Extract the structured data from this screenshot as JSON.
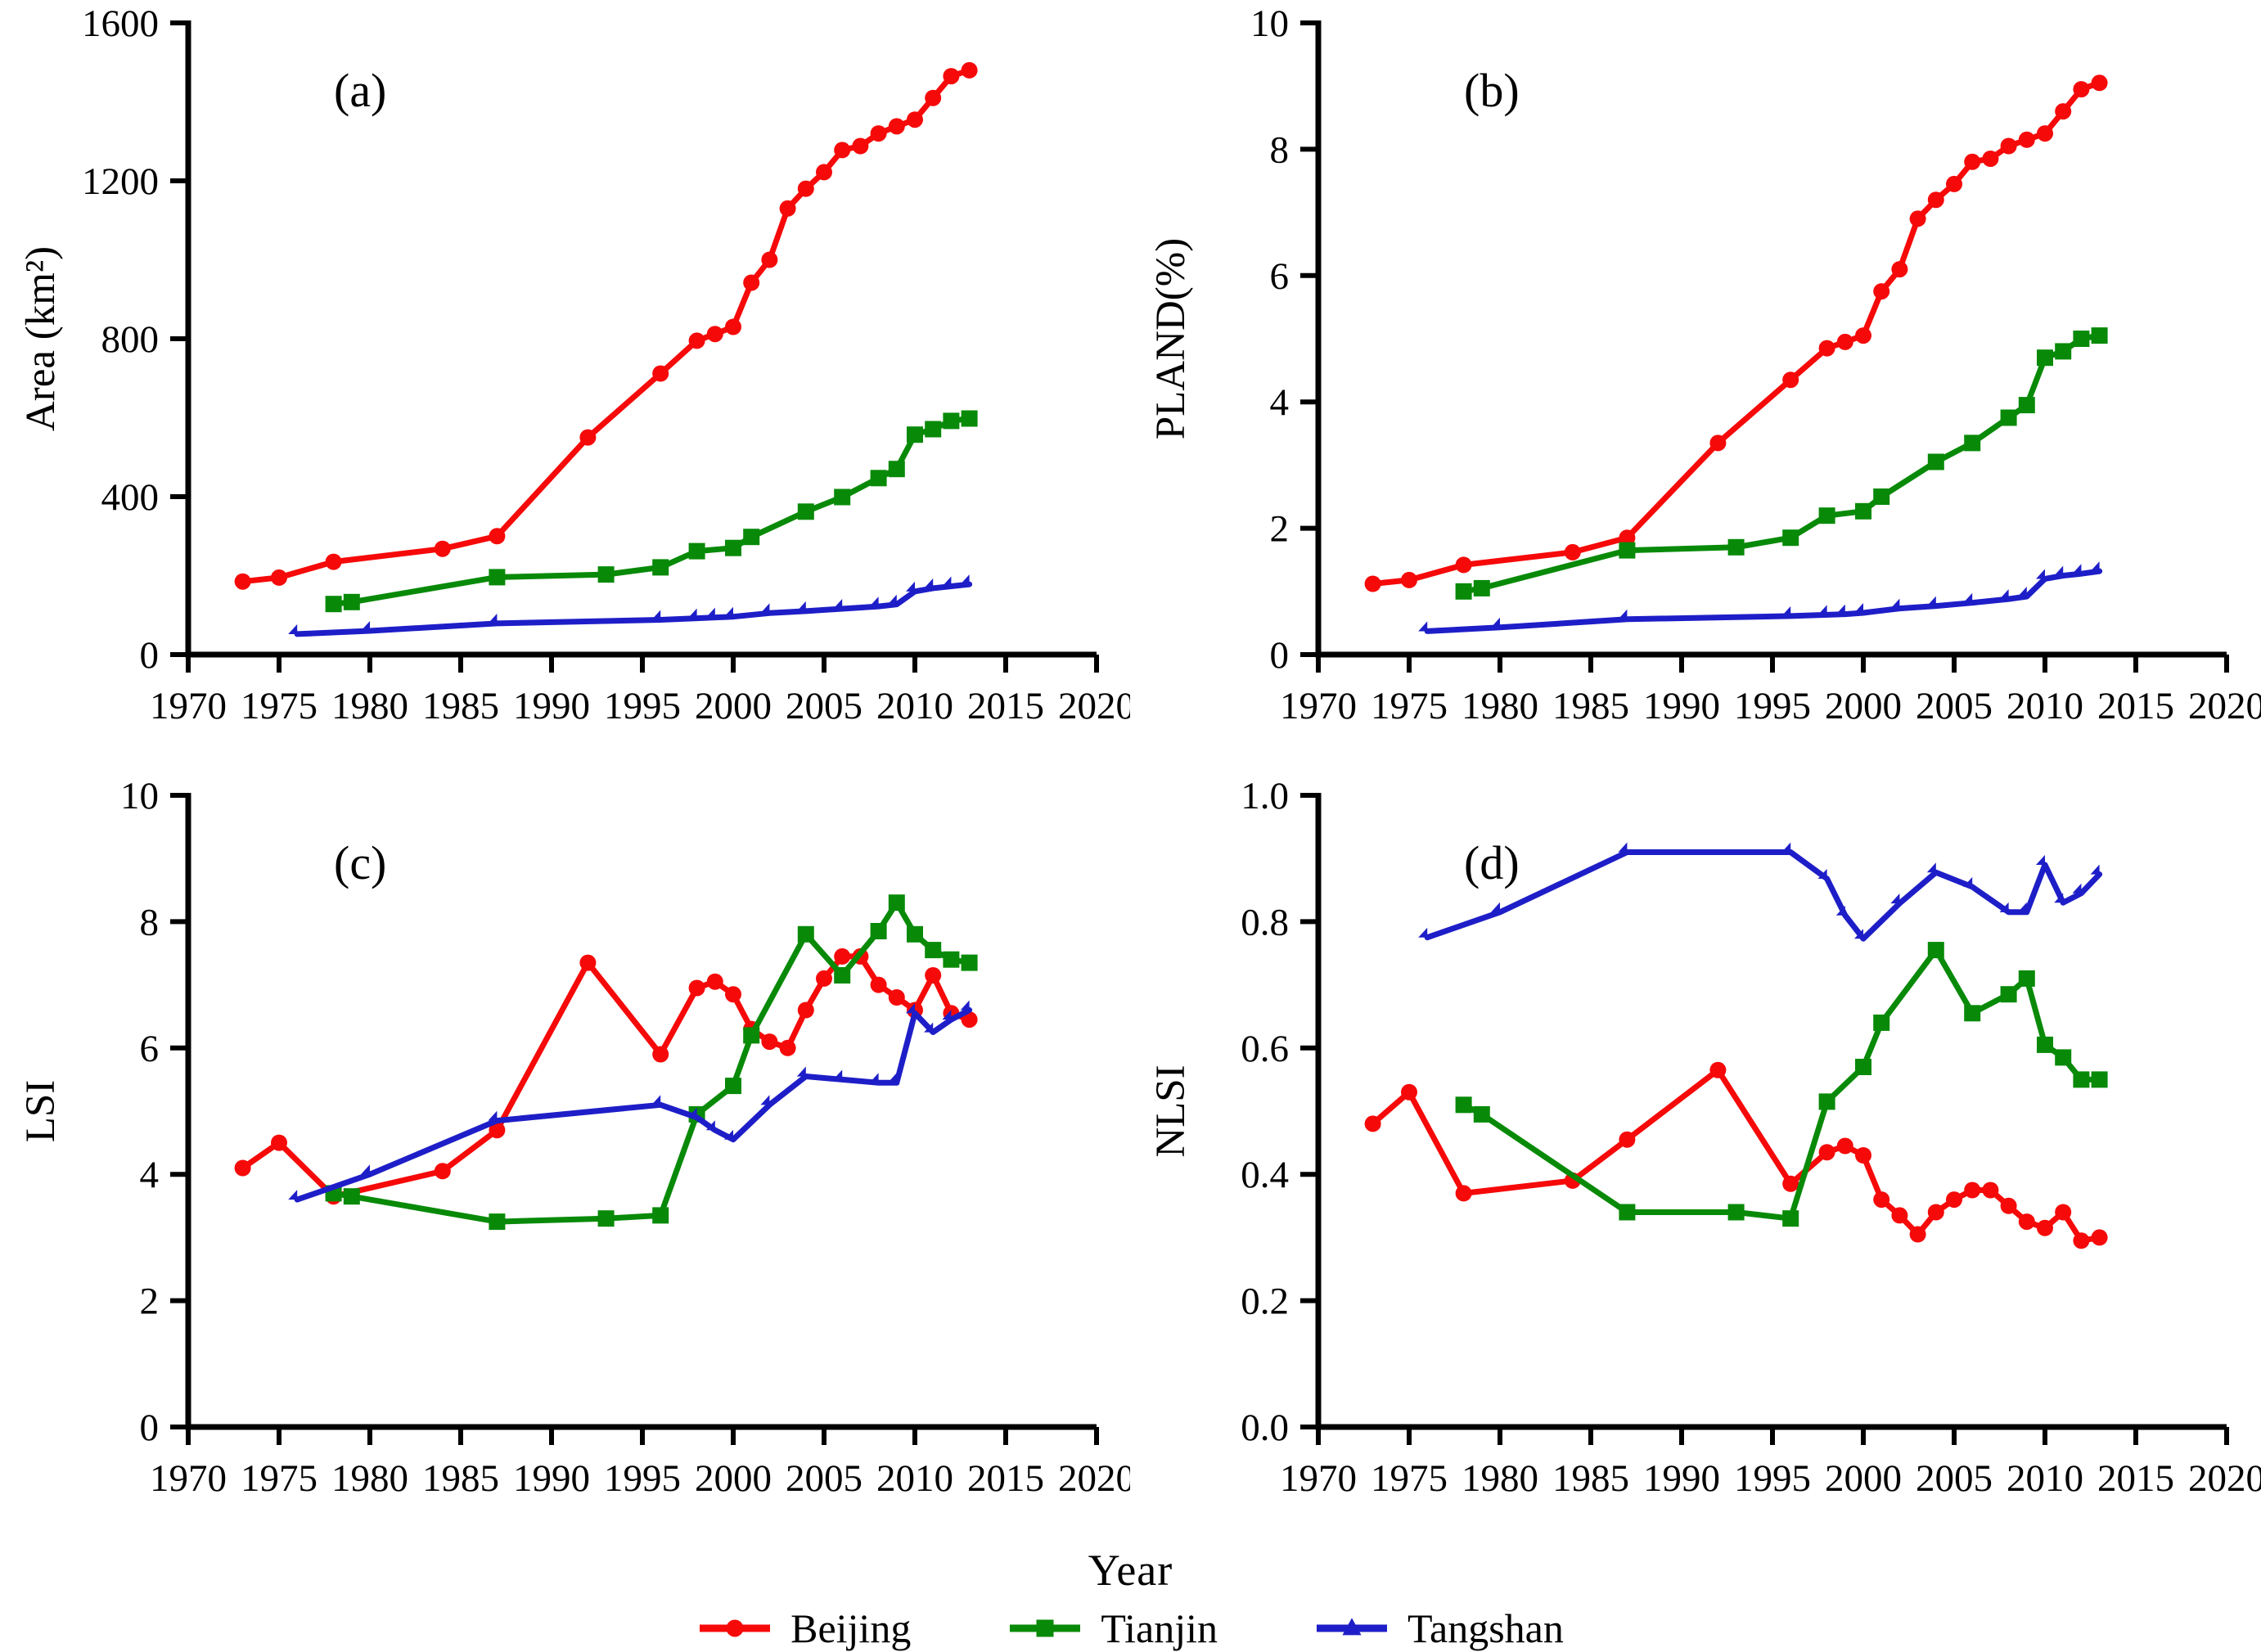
{
  "figure": {
    "xlabel": "Year",
    "background": "#ffffff",
    "axis_color": "#000000"
  },
  "legend": {
    "entries": [
      {
        "label": "Beijing",
        "color": "#f60909",
        "marker": "circle"
      },
      {
        "label": "Tianjin",
        "color": "#088a08",
        "marker": "square"
      },
      {
        "label": "Tangshan",
        "color": "#1e1ec8",
        "marker": "triangle"
      }
    ]
  },
  "chart_data": [
    {
      "type": "line",
      "panel_label": "(a)",
      "ylabel": "Area (km²)",
      "xlabel": "Year",
      "xlim": [
        1970,
        2020
      ],
      "ylim": [
        0,
        1600
      ],
      "xticks": [
        1970,
        1975,
        1980,
        1985,
        1990,
        1995,
        2000,
        2005,
        2010,
        2015,
        2020
      ],
      "ytick_values": [
        0,
        400,
        800,
        1200,
        1600
      ],
      "ytick_labels": [
        "0",
        "400",
        "800",
        "1200",
        "1600"
      ],
      "grid": false,
      "series": [
        {
          "name": "Beijing",
          "color": "#f60909",
          "marker": "circle",
          "x": [
            1973,
            1975,
            1978,
            1984,
            1987,
            1992,
            1996,
            1998,
            1999,
            2000,
            2001,
            2002,
            2003,
            2004,
            2005,
            2006,
            2007,
            2008,
            2009,
            2010,
            2011,
            2012,
            2013
          ],
          "y": [
            185,
            195,
            235,
            268,
            300,
            550,
            712,
            795,
            812,
            830,
            942,
            1000,
            1130,
            1180,
            1222,
            1278,
            1288,
            1320,
            1338,
            1355,
            1410,
            1465,
            1480
          ]
        },
        {
          "name": "Tianjin",
          "color": "#088a08",
          "marker": "square",
          "x": [
            1978,
            1979,
            1987,
            1993,
            1996,
            1998,
            2000,
            2001,
            2004,
            2006,
            2008,
            2009,
            2010,
            2011,
            2012,
            2013
          ],
          "y": [
            128,
            133,
            196,
            203,
            221,
            262,
            270,
            298,
            362,
            399,
            447,
            470,
            557,
            571,
            592,
            598
          ]
        },
        {
          "name": "Tangshan",
          "color": "#1e1ec8",
          "marker": "triangle",
          "x": [
            1976,
            1980,
            1987,
            1996,
            1998,
            1999,
            2000,
            2002,
            2004,
            2006,
            2008,
            2009,
            2010,
            2011,
            2012,
            2013
          ],
          "y": [
            52,
            60,
            79,
            88,
            92,
            94,
            96,
            105,
            110,
            116,
            122,
            127,
            160,
            168,
            173,
            178
          ]
        }
      ]
    },
    {
      "type": "line",
      "panel_label": "(b)",
      "ylabel": "PLAND(%)",
      "xlabel": "Year",
      "xlim": [
        1970,
        2020
      ],
      "ylim": [
        0,
        10
      ],
      "xticks": [
        1970,
        1975,
        1980,
        1985,
        1990,
        1995,
        2000,
        2005,
        2010,
        2015,
        2020
      ],
      "ytick_values": [
        0,
        2,
        4,
        6,
        8,
        10
      ],
      "ytick_labels": [
        "0",
        "2",
        "4",
        "6",
        "8",
        "10"
      ],
      "grid": false,
      "series": [
        {
          "name": "Beijing",
          "color": "#f60909",
          "marker": "circle",
          "x": [
            1973,
            1975,
            1978,
            1984,
            1987,
            1992,
            1996,
            1998,
            1999,
            2000,
            2001,
            2002,
            2003,
            2004,
            2005,
            2006,
            2007,
            2008,
            2009,
            2010,
            2011,
            2012,
            2013
          ],
          "y": [
            1.12,
            1.18,
            1.42,
            1.62,
            1.85,
            3.35,
            4.35,
            4.85,
            4.95,
            5.05,
            5.75,
            6.1,
            6.9,
            7.2,
            7.45,
            7.8,
            7.85,
            8.05,
            8.15,
            8.25,
            8.6,
            8.95,
            9.05
          ]
        },
        {
          "name": "Tianjin",
          "color": "#088a08",
          "marker": "square",
          "x": [
            1978,
            1979,
            1987,
            1993,
            1996,
            1998,
            2000,
            2001,
            2004,
            2006,
            2008,
            2009,
            2010,
            2011,
            2012,
            2013
          ],
          "y": [
            1.0,
            1.05,
            1.65,
            1.7,
            1.85,
            2.2,
            2.27,
            2.5,
            3.05,
            3.35,
            3.75,
            3.95,
            4.7,
            4.8,
            5.0,
            5.05
          ]
        },
        {
          "name": "Tangshan",
          "color": "#1e1ec8",
          "marker": "triangle",
          "x": [
            1976,
            1980,
            1987,
            1996,
            1998,
            1999,
            2000,
            2002,
            2004,
            2006,
            2008,
            2009,
            2010,
            2011,
            2012,
            2013
          ],
          "y": [
            0.37,
            0.43,
            0.56,
            0.61,
            0.63,
            0.64,
            0.66,
            0.73,
            0.77,
            0.82,
            0.88,
            0.92,
            1.2,
            1.25,
            1.28,
            1.32
          ]
        }
      ]
    },
    {
      "type": "line",
      "panel_label": "(c)",
      "ylabel": "LSI",
      "xlabel": "Year",
      "xlim": [
        1970,
        2020
      ],
      "ylim": [
        0,
        10
      ],
      "xticks": [
        1970,
        1975,
        1980,
        1985,
        1990,
        1995,
        2000,
        2005,
        2010,
        2015,
        2020
      ],
      "ytick_values": [
        0,
        2,
        4,
        6,
        8,
        10
      ],
      "ytick_labels": [
        "0",
        "2",
        "4",
        "6",
        "8",
        "10"
      ],
      "grid": false,
      "series": [
        {
          "name": "Beijing",
          "color": "#f60909",
          "marker": "circle",
          "x": [
            1973,
            1975,
            1978,
            1984,
            1987,
            1992,
            1996,
            1998,
            1999,
            2000,
            2001,
            2002,
            2003,
            2004,
            2005,
            2006,
            2007,
            2008,
            2009,
            2010,
            2011,
            2012,
            2013
          ],
          "y": [
            4.1,
            4.5,
            3.65,
            4.05,
            4.7,
            7.35,
            5.9,
            6.95,
            7.05,
            6.85,
            6.3,
            6.1,
            6.0,
            6.6,
            7.1,
            7.45,
            7.45,
            7.0,
            6.8,
            6.6,
            7.15,
            6.55,
            6.45
          ]
        },
        {
          "name": "Tianjin",
          "color": "#088a08",
          "marker": "square",
          "x": [
            1978,
            1979,
            1987,
            1993,
            1996,
            1998,
            2000,
            2001,
            2004,
            2006,
            2008,
            2009,
            2010,
            2011,
            2012,
            2013
          ],
          "y": [
            3.7,
            3.65,
            3.25,
            3.3,
            3.35,
            4.95,
            5.4,
            6.2,
            7.8,
            7.15,
            7.85,
            8.3,
            7.8,
            7.55,
            7.4,
            7.35
          ]
        },
        {
          "name": "Tangshan",
          "color": "#1e1ec8",
          "marker": "triangle",
          "x": [
            1976,
            1980,
            1987,
            1996,
            1998,
            1999,
            2000,
            2002,
            2004,
            2006,
            2008,
            2009,
            2010,
            2011,
            2012,
            2013
          ],
          "y": [
            3.6,
            4.0,
            4.85,
            5.1,
            4.9,
            4.7,
            4.55,
            5.1,
            5.55,
            5.5,
            5.45,
            5.45,
            6.55,
            6.25,
            6.45,
            6.6
          ]
        }
      ]
    },
    {
      "type": "line",
      "panel_label": "(d)",
      "ylabel": "NLSI",
      "xlabel": "Year",
      "xlim": [
        1970,
        2020
      ],
      "ylim": [
        0,
        1
      ],
      "xticks": [
        1970,
        1975,
        1980,
        1985,
        1990,
        1995,
        2000,
        2005,
        2010,
        2015,
        2020
      ],
      "ytick_values": [
        0,
        0.2,
        0.4,
        0.6,
        0.8,
        1.0
      ],
      "ytick_labels": [
        "0.0",
        "0.2",
        "0.4",
        "0.6",
        "0.8",
        "1.0"
      ],
      "grid": false,
      "series": [
        {
          "name": "Beijing",
          "color": "#f60909",
          "marker": "circle",
          "x": [
            1973,
            1975,
            1978,
            1984,
            1987,
            1992,
            1996,
            1998,
            1999,
            2000,
            2001,
            2002,
            2003,
            2004,
            2005,
            2006,
            2007,
            2008,
            2009,
            2010,
            2011,
            2012,
            2013
          ],
          "y": [
            0.48,
            0.53,
            0.37,
            0.39,
            0.455,
            0.565,
            0.385,
            0.435,
            0.445,
            0.43,
            0.36,
            0.335,
            0.305,
            0.34,
            0.36,
            0.375,
            0.375,
            0.35,
            0.325,
            0.315,
            0.34,
            0.295,
            0.3
          ]
        },
        {
          "name": "Tianjin",
          "color": "#088a08",
          "marker": "square",
          "x": [
            1978,
            1979,
            1987,
            1993,
            1996,
            1998,
            2000,
            2001,
            2004,
            2006,
            2008,
            2009,
            2010,
            2011,
            2012,
            2013
          ],
          "y": [
            0.51,
            0.495,
            0.34,
            0.34,
            0.33,
            0.515,
            0.57,
            0.64,
            0.755,
            0.655,
            0.685,
            0.71,
            0.605,
            0.585,
            0.55,
            0.55
          ]
        },
        {
          "name": "Tangshan",
          "color": "#1e1ec8",
          "marker": "triangle",
          "x": [
            1976,
            1980,
            1987,
            1996,
            1998,
            1999,
            2000,
            2002,
            2004,
            2006,
            2008,
            2009,
            2010,
            2011,
            2012,
            2013
          ],
          "y": [
            0.775,
            0.815,
            0.91,
            0.91,
            0.868,
            0.81,
            0.773,
            0.829,
            0.878,
            0.855,
            0.815,
            0.815,
            0.89,
            0.83,
            0.845,
            0.875
          ]
        }
      ]
    }
  ]
}
